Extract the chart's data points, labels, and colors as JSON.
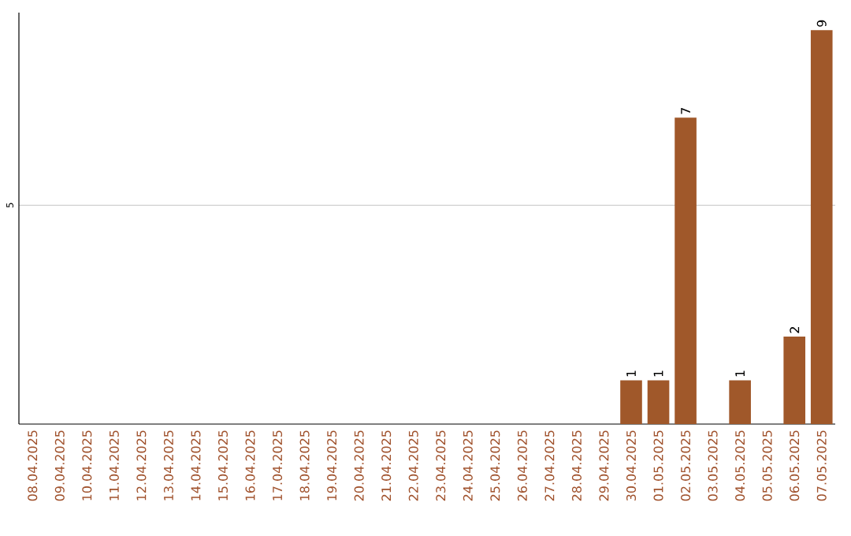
{
  "chart_data": {
    "type": "bar",
    "categories": [
      "08.04.2025",
      "09.04.2025",
      "10.04.2025",
      "11.04.2025",
      "12.04.2025",
      "13.04.2025",
      "14.04.2025",
      "15.04.2025",
      "16.04.2025",
      "17.04.2025",
      "18.04.2025",
      "19.04.2025",
      "20.04.2025",
      "21.04.2025",
      "22.04.2025",
      "23.04.2025",
      "24.04.2025",
      "25.04.2025",
      "26.04.2025",
      "27.04.2025",
      "28.04.2025",
      "29.04.2025",
      "30.04.2025",
      "01.05.2025",
      "02.05.2025",
      "03.05.2025",
      "04.05.2025",
      "05.05.2025",
      "06.05.2025",
      "07.05.2025"
    ],
    "values": [
      null,
      null,
      null,
      null,
      null,
      null,
      null,
      null,
      null,
      null,
      null,
      null,
      null,
      null,
      null,
      null,
      null,
      null,
      null,
      null,
      null,
      null,
      1,
      1,
      7,
      null,
      1,
      null,
      2,
      9
    ],
    "data_labels": true,
    "color": "#a0582a",
    "ylim": [
      0,
      9.4
    ],
    "yticks": [
      5
    ],
    "grid": "y"
  }
}
